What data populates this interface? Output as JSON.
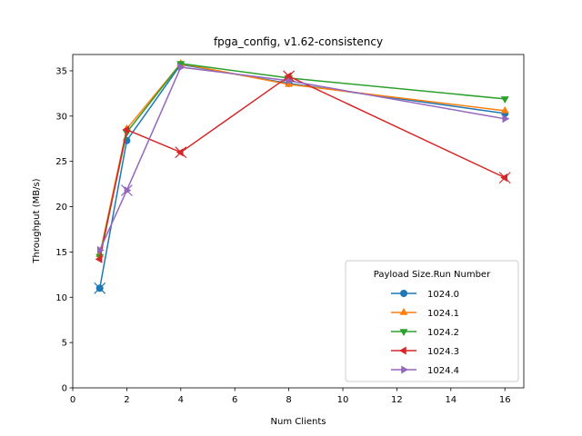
{
  "chart_data": {
    "type": "line",
    "title": "fpga_config, v1.62-consistency",
    "xlabel": "Num Clients",
    "ylabel": "Throughput (MB/s)",
    "xlim": [
      0,
      16.7
    ],
    "ylim": [
      0,
      36.8
    ],
    "xticks": [
      0,
      2,
      4,
      6,
      8,
      10,
      12,
      14,
      16
    ],
    "yticks": [
      0,
      5,
      10,
      15,
      20,
      25,
      30,
      35
    ],
    "grid": false,
    "legend": {
      "title": "Payload Size.Run Number",
      "placement": "lower-right"
    },
    "series": [
      {
        "name": "1024.0",
        "color": "#1f77b4",
        "marker": "circle",
        "x": [
          1,
          2,
          4,
          8,
          16
        ],
        "y": [
          11.0,
          27.3,
          35.7,
          33.6,
          30.3
        ]
      },
      {
        "name": "1024.1",
        "color": "#ff7f0e",
        "marker": "triangle-up",
        "x": [
          1,
          2,
          4,
          8,
          16
        ],
        "y": [
          14.7,
          28.6,
          35.8,
          33.5,
          30.6
        ]
      },
      {
        "name": "1024.2",
        "color": "#2ca02c",
        "marker": "triangle-down",
        "x": [
          1,
          2,
          4,
          8,
          16
        ],
        "y": [
          14.5,
          28.2,
          35.8,
          34.2,
          31.9
        ]
      },
      {
        "name": "1024.3",
        "color": "#d62728",
        "marker": "triangle-left",
        "x": [
          1,
          2,
          4,
          8,
          16
        ],
        "y": [
          14.2,
          28.5,
          26.0,
          34.4,
          23.2
        ]
      },
      {
        "name": "1024.4",
        "color": "#9467bd",
        "marker": "triangle-right",
        "x": [
          1,
          2,
          4,
          8,
          16
        ],
        "y": [
          15.2,
          21.8,
          35.4,
          33.9,
          29.7
        ]
      }
    ],
    "outlier_markers": [
      {
        "x": 1,
        "y": 11.0,
        "color": "#1f77b4"
      },
      {
        "x": 2,
        "y": 21.8,
        "color": "#9467bd"
      },
      {
        "x": 4,
        "y": 26.0,
        "color": "#d62728"
      },
      {
        "x": 8,
        "y": 34.4,
        "color": "#d62728"
      },
      {
        "x": 16,
        "y": 23.2,
        "color": "#d62728"
      }
    ]
  }
}
